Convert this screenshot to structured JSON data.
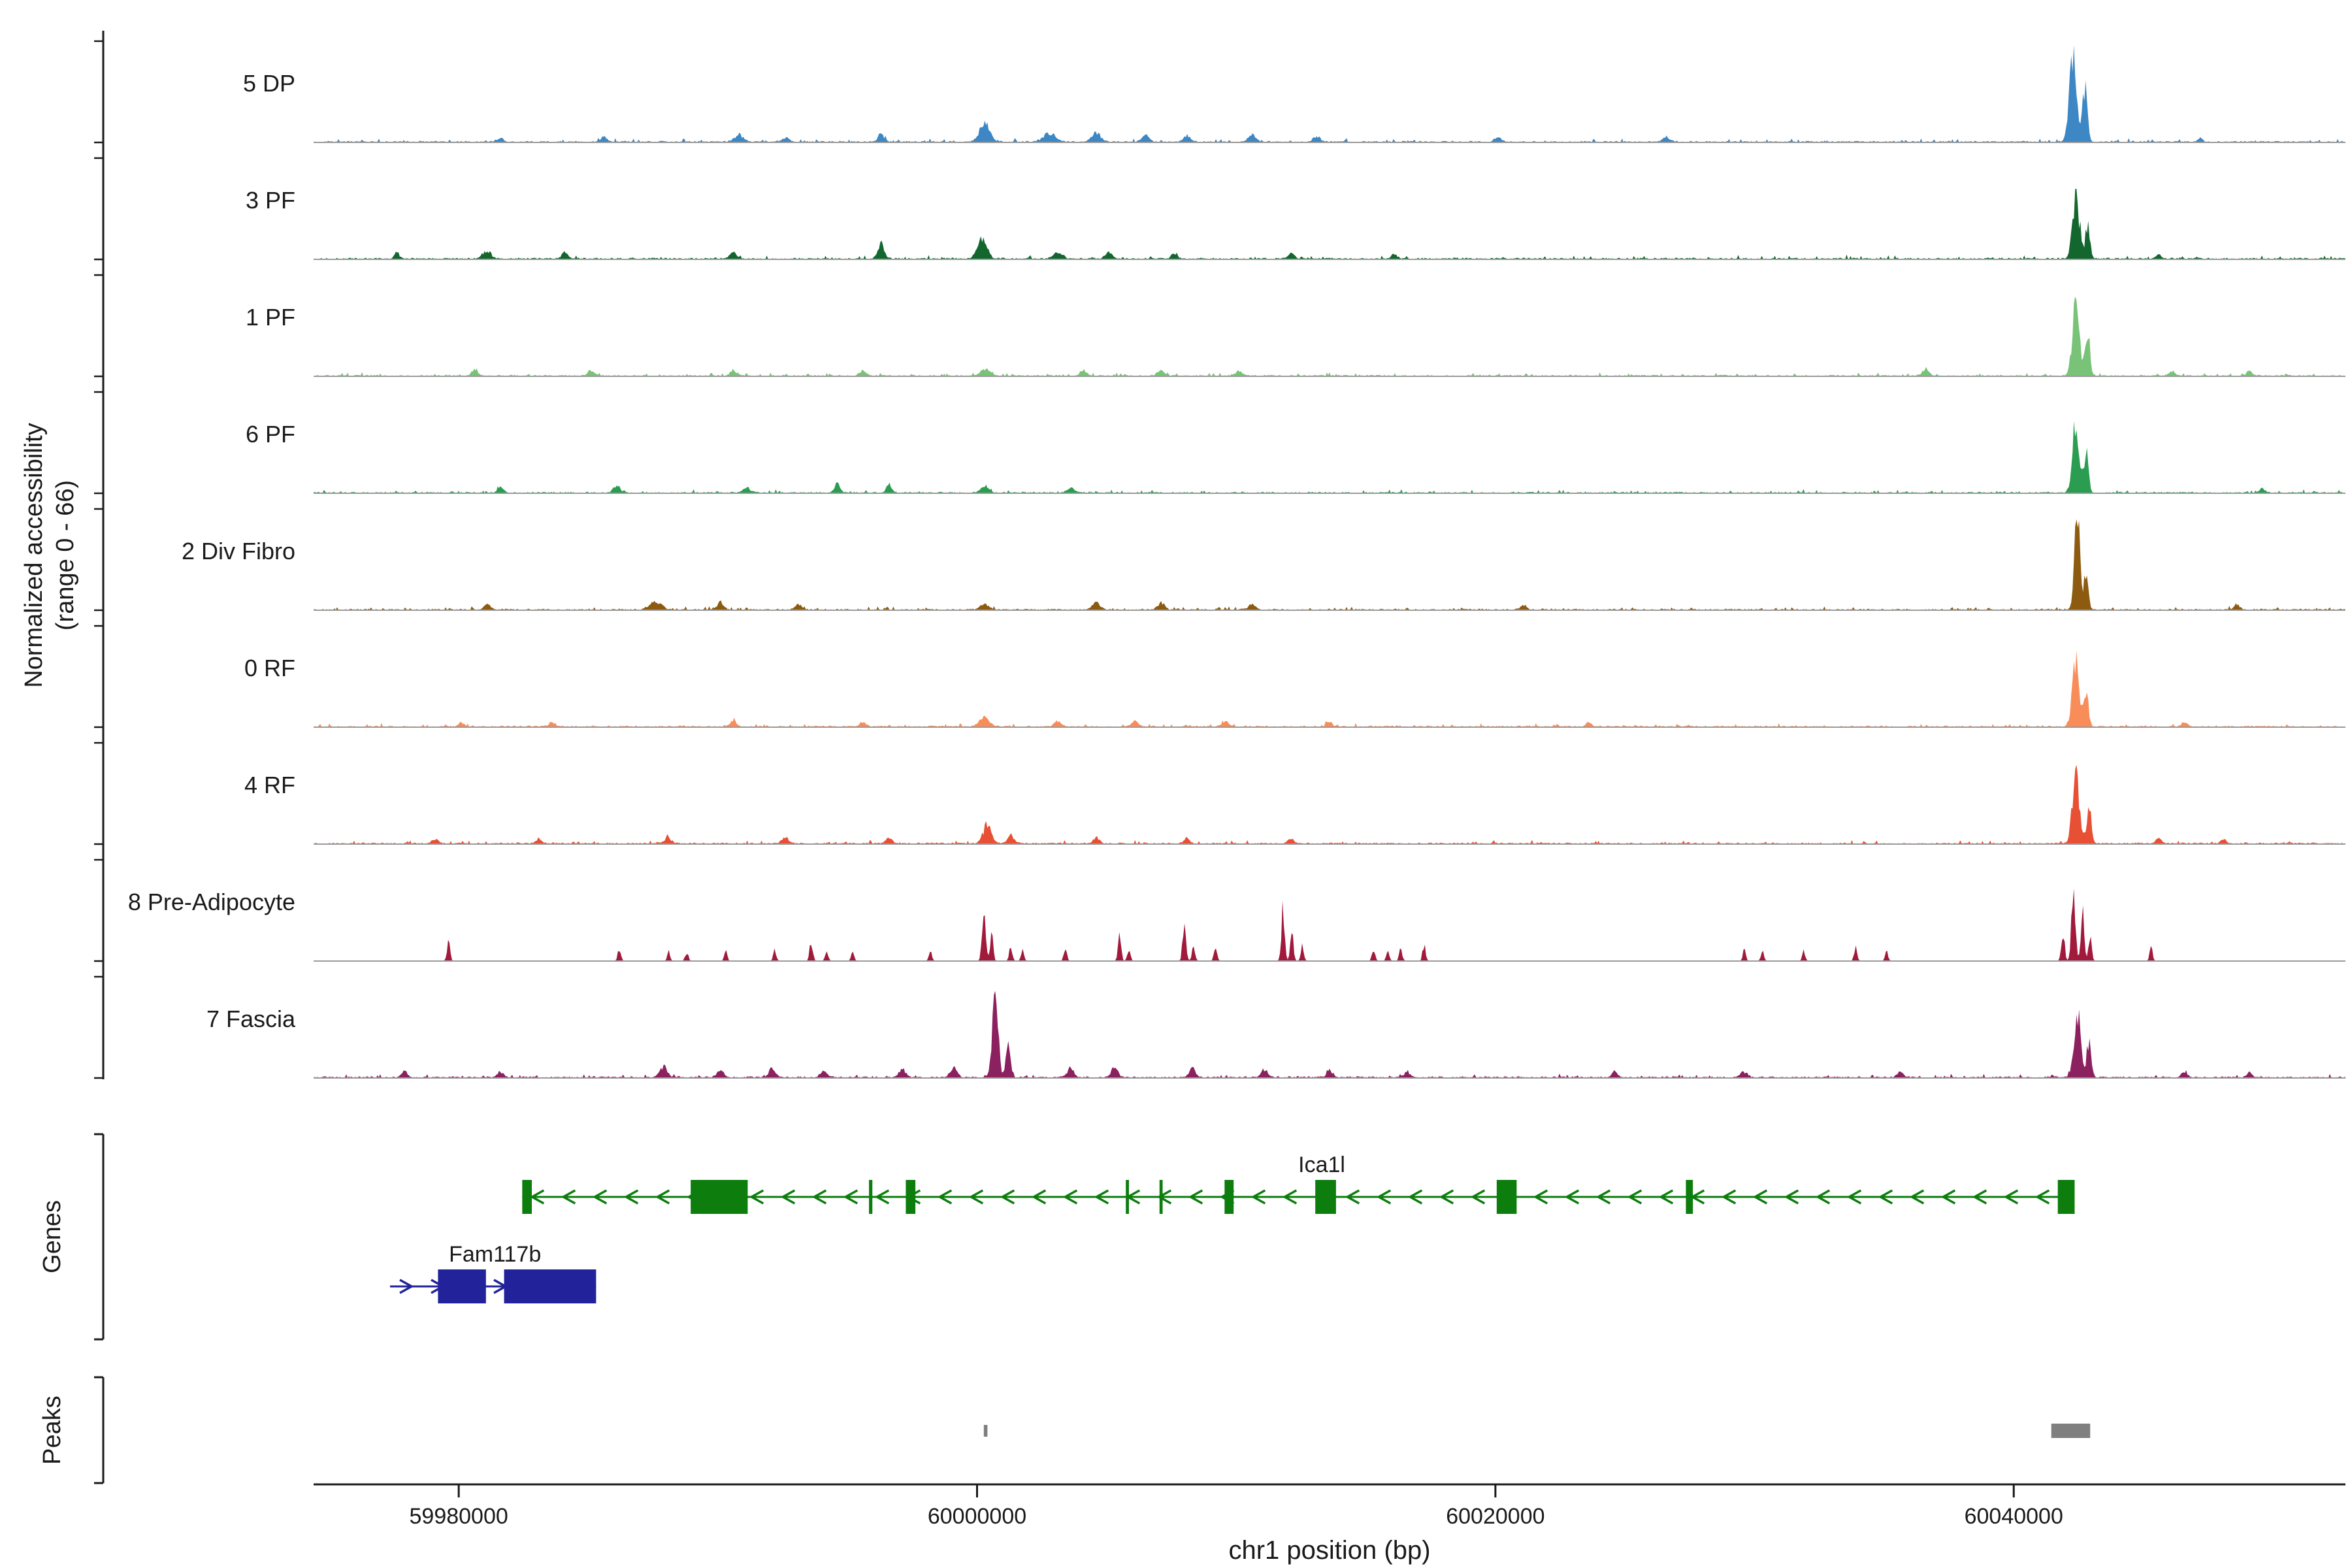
{
  "chart_data": {
    "type": "area",
    "title": "",
    "xlabel": "chr1 position (bp)",
    "ylabel_line1": "Normalized accessibility",
    "ylabel_line2": "(range 0 - 66)",
    "section_labels": {
      "genes": "Genes",
      "peaks": "Peaks"
    },
    "x_domain": [
      59974400,
      60052800
    ],
    "x_ticks": [
      59980000,
      60000000,
      60020000,
      60040000
    ],
    "track_value_range": [
      0,
      66
    ],
    "peak_color": "#7f7f7f",
    "tracks": [
      {
        "label": "5 DP",
        "color": "#3c87c4",
        "seed": 11,
        "noise_amp": 3.2,
        "peaks": [
          [
            59981600,
            2.5,
            300
          ],
          [
            59985600,
            3,
            300
          ],
          [
            59990800,
            4.5,
            400
          ],
          [
            59992600,
            3,
            300
          ],
          [
            59996300,
            5.5,
            260
          ],
          [
            60000300,
            13,
            450
          ],
          [
            60002800,
            6,
            500
          ],
          [
            60004600,
            5.5,
            400
          ],
          [
            60006500,
            4.5,
            300
          ],
          [
            60008100,
            4,
            300
          ],
          [
            60010600,
            4.5,
            350
          ],
          [
            60013100,
            3.5,
            300
          ],
          [
            60020100,
            3,
            300
          ],
          [
            60026600,
            3,
            300
          ],
          [
            60042300,
            60,
            330
          ],
          [
            60042750,
            36,
            220
          ],
          [
            60047200,
            2.5,
            220
          ]
        ]
      },
      {
        "label": "3 PF",
        "color": "#13672e",
        "seed": 22,
        "noise_amp": 3.4,
        "peaks": [
          [
            59977600,
            3.5,
            220
          ],
          [
            59981100,
            5.5,
            320
          ],
          [
            59984100,
            4.5,
            260
          ],
          [
            59990600,
            4,
            300
          ],
          [
            59996300,
            9,
            300
          ],
          [
            60000200,
            12,
            420
          ],
          [
            60003100,
            4.5,
            380
          ],
          [
            60005100,
            4,
            300
          ],
          [
            60007600,
            3.5,
            260
          ],
          [
            60012100,
            3.5,
            300
          ],
          [
            60016100,
            3,
            260
          ],
          [
            60042400,
            42,
            310
          ],
          [
            60042850,
            24,
            200
          ],
          [
            60045600,
            3,
            220
          ]
        ]
      },
      {
        "label": "1 PF",
        "color": "#79c379",
        "seed": 33,
        "noise_amp": 3.0,
        "peaks": [
          [
            59980600,
            3,
            300
          ],
          [
            59985100,
            3,
            300
          ],
          [
            59990600,
            3.5,
            300
          ],
          [
            59995600,
            3.5,
            300
          ],
          [
            60000300,
            4.5,
            400
          ],
          [
            60004100,
            3.5,
            300
          ],
          [
            60007100,
            3.2,
            300
          ],
          [
            60010100,
            3,
            300
          ],
          [
            60036600,
            4.5,
            300
          ],
          [
            60042400,
            48,
            320
          ],
          [
            60042850,
            28,
            200
          ],
          [
            60046100,
            3,
            260
          ],
          [
            60049100,
            2.8,
            260
          ]
        ]
      },
      {
        "label": "6 PF",
        "color": "#2a9d51",
        "seed": 44,
        "noise_amp": 3.0,
        "peaks": [
          [
            59981600,
            3.5,
            260
          ],
          [
            59986100,
            4.5,
            300
          ],
          [
            59991100,
            3.5,
            300
          ],
          [
            59994600,
            6,
            260
          ],
          [
            59996600,
            4.5,
            260
          ],
          [
            60000300,
            4.5,
            360
          ],
          [
            60003600,
            3.5,
            300
          ],
          [
            60042400,
            46,
            300
          ],
          [
            60042800,
            26,
            200
          ],
          [
            60049600,
            2.8,
            220
          ]
        ]
      },
      {
        "label": "2 Div Fibro",
        "color": "#8c5b0f",
        "seed": 55,
        "noise_amp": 3.0,
        "peaks": [
          [
            59981100,
            3,
            300
          ],
          [
            59987600,
            5.5,
            500
          ],
          [
            59990100,
            4.5,
            300
          ],
          [
            59993100,
            3,
            300
          ],
          [
            60000300,
            3.5,
            400
          ],
          [
            60004600,
            4.5,
            360
          ],
          [
            60007100,
            4.5,
            300
          ],
          [
            60010600,
            3.5,
            300
          ],
          [
            60021100,
            3,
            260
          ],
          [
            60042450,
            58,
            250
          ],
          [
            60042800,
            28,
            180
          ],
          [
            60048600,
            3.5,
            260
          ]
        ]
      },
      {
        "label": "0 RF",
        "color": "#f98d5a",
        "seed": 66,
        "noise_amp": 3.0,
        "peaks": [
          [
            59980100,
            2.8,
            260
          ],
          [
            59983600,
            2.8,
            260
          ],
          [
            59990600,
            3.5,
            300
          ],
          [
            59995600,
            3,
            300
          ],
          [
            60000300,
            6,
            450
          ],
          [
            60003100,
            3.5,
            300
          ],
          [
            60006100,
            3.5,
            300
          ],
          [
            60009600,
            3.2,
            300
          ],
          [
            60013600,
            3,
            260
          ],
          [
            60023600,
            2.8,
            260
          ],
          [
            60042400,
            42,
            320
          ],
          [
            60042800,
            24,
            200
          ],
          [
            60046600,
            3,
            260
          ]
        ]
      },
      {
        "label": "4 RF",
        "color": "#e75035",
        "seed": 77,
        "noise_amp": 3.2,
        "peaks": [
          [
            59979100,
            2.8,
            260
          ],
          [
            59983100,
            3.2,
            260
          ],
          [
            59988100,
            3.2,
            300
          ],
          [
            59992600,
            3.5,
            300
          ],
          [
            59996600,
            3.5,
            300
          ],
          [
            60000400,
            12,
            380
          ],
          [
            60001300,
            5.5,
            300
          ],
          [
            60004600,
            3.5,
            300
          ],
          [
            60008100,
            3.2,
            260
          ],
          [
            60012100,
            3,
            260
          ],
          [
            60042400,
            44,
            330
          ],
          [
            60042900,
            26,
            200
          ],
          [
            60045600,
            3.5,
            260
          ],
          [
            60048100,
            2.8,
            220
          ]
        ]
      },
      {
        "label": "8 Pre-Adipocyte",
        "color": "#a11a3c",
        "seed": 88,
        "noise_amp": 0.3,
        "peaks": [
          [
            59979600,
            13,
            140
          ],
          [
            59986200,
            9,
            140
          ],
          [
            59988100,
            6,
            140
          ],
          [
            59988800,
            6,
            140
          ],
          [
            59990300,
            6,
            140
          ],
          [
            59992200,
            7,
            140
          ],
          [
            59993600,
            13,
            140
          ],
          [
            59994200,
            6,
            140
          ],
          [
            59995200,
            7,
            140
          ],
          [
            59998200,
            6,
            140
          ],
          [
            60000260,
            36,
            160
          ],
          [
            60000560,
            18,
            140
          ],
          [
            60001300,
            9,
            140
          ],
          [
            60001750,
            7,
            140
          ],
          [
            60003400,
            8,
            140
          ],
          [
            60005500,
            16,
            140
          ],
          [
            60005850,
            8,
            140
          ],
          [
            60008000,
            27,
            150
          ],
          [
            60008350,
            10,
            140
          ],
          [
            60009200,
            11,
            140
          ],
          [
            60011800,
            32,
            150
          ],
          [
            60012150,
            17,
            140
          ],
          [
            60012550,
            10,
            140
          ],
          [
            60015300,
            8,
            140
          ],
          [
            60015850,
            6,
            140
          ],
          [
            60016350,
            8,
            140
          ],
          [
            60017250,
            11,
            140
          ],
          [
            60029600,
            7,
            140
          ],
          [
            60030300,
            7,
            140
          ],
          [
            60031900,
            6,
            140
          ],
          [
            60033900,
            9,
            140
          ],
          [
            60035100,
            6,
            140
          ],
          [
            60041900,
            18,
            150
          ],
          [
            60042300,
            50,
            170
          ],
          [
            60042650,
            32,
            150
          ],
          [
            60042950,
            16,
            140
          ],
          [
            60045300,
            9,
            140
          ]
        ]
      },
      {
        "label": "7 Fascia",
        "color": "#8c2160",
        "seed": 99,
        "noise_amp": 3.4,
        "peaks": [
          [
            59977900,
            3.5,
            260
          ],
          [
            59981600,
            3.5,
            300
          ],
          [
            59987900,
            7,
            350
          ],
          [
            59990100,
            4.5,
            300
          ],
          [
            59992100,
            5.5,
            300
          ],
          [
            59994100,
            4.5,
            300
          ],
          [
            59997100,
            5.5,
            300
          ],
          [
            59999100,
            6.5,
            300
          ],
          [
            60000700,
            50,
            270
          ],
          [
            60001200,
            22,
            200
          ],
          [
            60003600,
            5.5,
            300
          ],
          [
            60005300,
            6.5,
            300
          ],
          [
            60008300,
            5.5,
            300
          ],
          [
            60011100,
            4.5,
            300
          ],
          [
            60013600,
            4.5,
            260
          ],
          [
            60016600,
            3.5,
            260
          ],
          [
            60024600,
            3.5,
            260
          ],
          [
            60029600,
            3.5,
            300
          ],
          [
            60035600,
            3.5,
            260
          ],
          [
            60042450,
            42,
            300
          ],
          [
            60042900,
            24,
            200
          ],
          [
            60046600,
            3.5,
            260
          ],
          [
            60049100,
            3,
            220
          ]
        ]
      }
    ],
    "genes": [
      {
        "name": "Ica1l",
        "color": "#0d7d0d",
        "strand": "-",
        "start": 59982450,
        "end": 60042350,
        "label_bp": 60013300,
        "exons": [
          [
            59982450,
            59982820
          ],
          [
            59988950,
            59991150
          ],
          [
            59995830,
            59995960
          ],
          [
            59997250,
            59997620
          ],
          [
            60005740,
            60005860
          ],
          [
            60007040,
            60007160
          ],
          [
            60009550,
            60009900
          ],
          [
            60013050,
            60013850
          ],
          [
            60020050,
            60020820
          ],
          [
            60027350,
            60027620
          ],
          [
            60041700,
            60042350
          ]
        ]
      },
      {
        "name": "Fam117b",
        "color": "#22229b",
        "strand": "+",
        "start": 59977350,
        "end": 59985300,
        "label_bp": 59981400,
        "exons": [
          [
            59979200,
            59981050
          ],
          [
            59981750,
            59985300
          ]
        ]
      }
    ],
    "peaks": [
      {
        "start": 60000260,
        "end": 60000400,
        "height": 18
      },
      {
        "start": 60041450,
        "end": 60042950,
        "height": 22
      }
    ]
  }
}
